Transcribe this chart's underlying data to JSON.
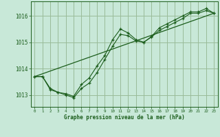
{
  "xlabel": "Graphe pression niveau de la mer (hPa)",
  "background_color": "#c8e8d8",
  "grid_color": "#99bb99",
  "line_color": "#1a5c1a",
  "xlim": [
    -0.5,
    23.5
  ],
  "ylim": [
    1012.55,
    1016.55
  ],
  "yticks": [
    1013,
    1014,
    1015,
    1016
  ],
  "xticks": [
    0,
    1,
    2,
    3,
    4,
    5,
    6,
    7,
    8,
    9,
    10,
    11,
    12,
    13,
    14,
    15,
    16,
    17,
    18,
    19,
    20,
    21,
    22,
    23
  ],
  "series1_x": [
    0,
    1,
    2,
    3,
    4,
    5,
    6,
    7,
    8,
    9,
    10,
    11,
    12,
    13,
    14,
    15,
    16,
    17,
    18,
    19,
    20,
    21,
    22,
    23
  ],
  "series1_y": [
    1013.7,
    1013.7,
    1013.2,
    1013.1,
    1013.0,
    1012.9,
    1013.25,
    1013.45,
    1013.85,
    1014.35,
    1014.85,
    1015.3,
    1015.25,
    1015.05,
    1015.0,
    1015.2,
    1015.45,
    1015.6,
    1015.75,
    1015.9,
    1016.1,
    1016.1,
    1016.2,
    1016.1
  ],
  "series2_x": [
    0,
    1,
    2,
    3,
    4,
    5,
    6,
    7,
    8,
    9,
    10,
    11,
    12,
    13,
    14,
    15,
    16,
    17,
    18,
    19,
    20,
    21,
    22,
    23
  ],
  "series2_y": [
    1013.7,
    1013.7,
    1013.25,
    1013.1,
    1013.05,
    1012.95,
    1013.4,
    1013.65,
    1014.1,
    1014.5,
    1015.1,
    1015.5,
    1015.35,
    1015.1,
    1015.0,
    1015.22,
    1015.55,
    1015.7,
    1015.85,
    1016.0,
    1016.15,
    1016.15,
    1016.28,
    1016.1
  ],
  "series3_x": [
    0,
    23
  ],
  "series3_y": [
    1013.7,
    1016.1
  ]
}
